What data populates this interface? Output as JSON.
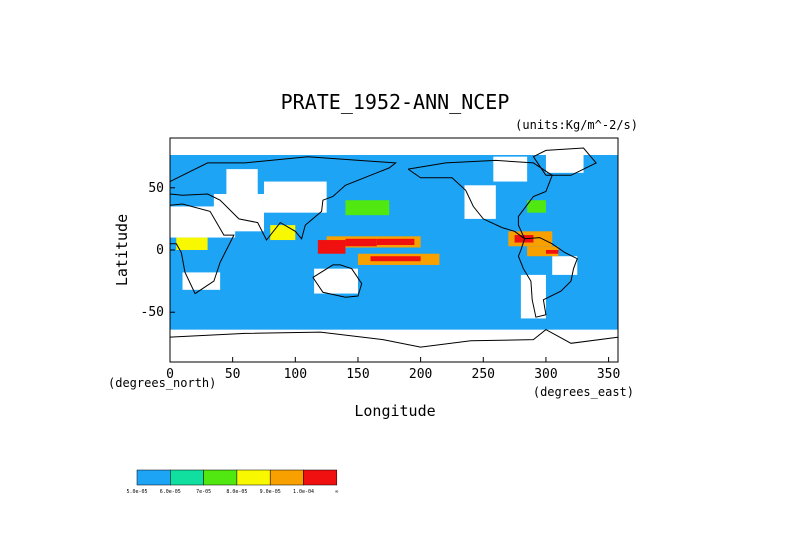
{
  "chart_data": {
    "type": "heatmap",
    "title": "PRATE_1952-ANN_NCEP",
    "units": "(units:Kg/m^-2/s)",
    "xlabel": "Longitude",
    "ylabel": "Latitude",
    "x_unit_label": "(degrees_east)",
    "y_unit_label": "(degrees_north)",
    "xlim": [
      0,
      357.5
    ],
    "ylim": [
      -90,
      90
    ],
    "x_ticks": [
      0,
      50,
      100,
      150,
      200,
      250,
      300,
      350
    ],
    "y_ticks": [
      -50,
      0,
      50
    ],
    "colorbar": {
      "colors": [
        "#1ea4f5",
        "#10dfa0",
        "#50e810",
        "#f8f800",
        "#f8a000",
        "#f01010"
      ],
      "labels": [
        "5.0e-05",
        "6.0e-05",
        "7e-05",
        "8.0e-05",
        "9.0e-05",
        "1.0e-04",
        "∞"
      ]
    },
    "rain_regions": [
      {
        "lon": [
          125,
          200
        ],
        "lat": [
          2,
          11
        ],
        "level": 4
      },
      {
        "lon": [
          140,
          165
        ],
        "lat": [
          3,
          9
        ],
        "level": 5
      },
      {
        "lon": [
          165,
          195
        ],
        "lat": [
          4,
          9
        ],
        "level": 5
      },
      {
        "lon": [
          118,
          140
        ],
        "lat": [
          -3,
          8
        ],
        "level": 5
      },
      {
        "lon": [
          150,
          215
        ],
        "lat": [
          -12,
          -3
        ],
        "level": 4
      },
      {
        "lon": [
          160,
          200
        ],
        "lat": [
          -9,
          -5
        ],
        "level": 5
      },
      {
        "lon": [
          270,
          305
        ],
        "lat": [
          3,
          15
        ],
        "level": 4
      },
      {
        "lon": [
          275,
          290
        ],
        "lat": [
          6,
          12
        ],
        "level": 5
      },
      {
        "lon": [
          285,
          310
        ],
        "lat": [
          -5,
          3
        ],
        "level": 4
      },
      {
        "lon": [
          300,
          310
        ],
        "lat": [
          -3,
          0
        ],
        "level": 5
      },
      {
        "lon": [
          5,
          30
        ],
        "lat": [
          0,
          10
        ],
        "level": 3
      },
      {
        "lon": [
          80,
          100
        ],
        "lat": [
          8,
          20
        ],
        "level": 3
      },
      {
        "lon": [
          140,
          175
        ],
        "lat": [
          28,
          40
        ],
        "level": 2
      },
      {
        "lon": [
          285,
          300
        ],
        "lat": [
          30,
          40
        ],
        "level": 2
      }
    ]
  }
}
